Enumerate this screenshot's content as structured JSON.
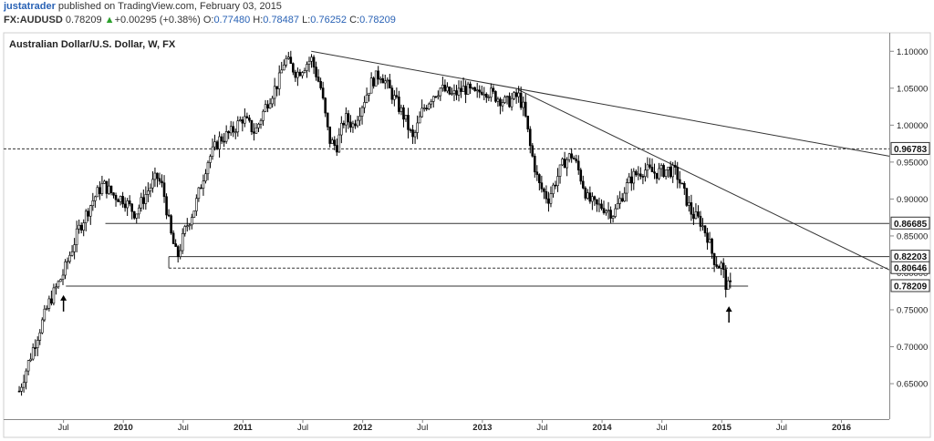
{
  "header": {
    "user": "justatrader",
    "published": " published on TradingView.com, February 03, 2015",
    "symbol": "FX:AUDUSD",
    "last": "0.78209",
    "change_arrow": "▲",
    "change": "+0.00295 (+0.38%)",
    "o_label": "O:",
    "o_val": "0.77480",
    "h_label": "H:",
    "h_val": "0.78487",
    "l_label": "L:",
    "l_val": "0.76252",
    "c_label": "C:",
    "c_val": "0.78209"
  },
  "chart_data": {
    "type": "candlestick",
    "title": "Australian Dollar/U.S. Dollar, W, FX",
    "ylim": [
      0.602,
      1.125
    ],
    "y_ticks": [
      "1.10000",
      "1.05000",
      "1.00000",
      "0.95000",
      "0.90000",
      "0.85000",
      "0.80000",
      "0.75000",
      "0.70000",
      "0.65000"
    ],
    "x_ticks": [
      {
        "label": "Jul",
        "t": 2009.5,
        "bold": false
      },
      {
        "label": "2010",
        "t": 2010.0,
        "bold": true
      },
      {
        "label": "Jul",
        "t": 2010.5,
        "bold": false
      },
      {
        "label": "2011",
        "t": 2011.0,
        "bold": true
      },
      {
        "label": "Jul",
        "t": 2011.5,
        "bold": false
      },
      {
        "label": "2012",
        "t": 2012.0,
        "bold": true
      },
      {
        "label": "Jul",
        "t": 2012.5,
        "bold": false
      },
      {
        "label": "2013",
        "t": 2013.0,
        "bold": true
      },
      {
        "label": "Jul",
        "t": 2013.5,
        "bold": false
      },
      {
        "label": "2014",
        "t": 2014.0,
        "bold": true
      },
      {
        "label": "Jul",
        "t": 2014.5,
        "bold": false
      },
      {
        "label": "2015",
        "t": 2015.0,
        "bold": true
      },
      {
        "label": "Jul",
        "t": 2015.5,
        "bold": false
      },
      {
        "label": "2016",
        "t": 2016.0,
        "bold": true
      }
    ],
    "price_path": [
      [
        2009.13,
        0.64
      ],
      [
        2009.25,
        0.7
      ],
      [
        2009.38,
        0.76
      ],
      [
        2009.5,
        0.8
      ],
      [
        2009.63,
        0.86
      ],
      [
        2009.75,
        0.9
      ],
      [
        2009.83,
        0.92
      ],
      [
        2009.92,
        0.905
      ],
      [
        2010.0,
        0.9
      ],
      [
        2010.1,
        0.88
      ],
      [
        2010.2,
        0.91
      ],
      [
        2010.28,
        0.93
      ],
      [
        2010.33,
        0.915
      ],
      [
        2010.4,
        0.85
      ],
      [
        2010.45,
        0.82
      ],
      [
        2010.52,
        0.86
      ],
      [
        2010.6,
        0.89
      ],
      [
        2010.7,
        0.95
      ],
      [
        2010.8,
        0.98
      ],
      [
        2010.9,
        0.99
      ],
      [
        2011.0,
        1.01
      ],
      [
        2011.1,
        0.99
      ],
      [
        2011.2,
        1.03
      ],
      [
        2011.3,
        1.06
      ],
      [
        2011.35,
        1.09
      ],
      [
        2011.45,
        1.07
      ],
      [
        2011.57,
        1.09
      ],
      [
        2011.65,
        1.05
      ],
      [
        2011.72,
        0.98
      ],
      [
        2011.78,
        0.97
      ],
      [
        2011.85,
        1.01
      ],
      [
        2011.92,
        1.0
      ],
      [
        2012.0,
        1.03
      ],
      [
        2012.08,
        1.06
      ],
      [
        2012.15,
        1.07
      ],
      [
        2012.25,
        1.04
      ],
      [
        2012.35,
        1.01
      ],
      [
        2012.42,
        0.98
      ],
      [
        2012.5,
        1.02
      ],
      [
        2012.58,
        1.04
      ],
      [
        2012.65,
        1.05
      ],
      [
        2012.75,
        1.04
      ],
      [
        2012.85,
        1.05
      ],
      [
        2012.95,
        1.04
      ],
      [
        2013.0,
        1.05
      ],
      [
        2013.1,
        1.04
      ],
      [
        2013.2,
        1.03
      ],
      [
        2013.3,
        1.04
      ],
      [
        2013.35,
        1.02
      ],
      [
        2013.4,
        0.97
      ],
      [
        2013.47,
        0.92
      ],
      [
        2013.55,
        0.9
      ],
      [
        2013.6,
        0.92
      ],
      [
        2013.68,
        0.95
      ],
      [
        2013.75,
        0.96
      ],
      [
        2013.8,
        0.94
      ],
      [
        2013.88,
        0.9
      ],
      [
        2013.95,
        0.89
      ],
      [
        2014.0,
        0.89
      ],
      [
        2014.1,
        0.88
      ],
      [
        2014.18,
        0.91
      ],
      [
        2014.25,
        0.93
      ],
      [
        2014.35,
        0.94
      ],
      [
        2014.45,
        0.935
      ],
      [
        2014.55,
        0.94
      ],
      [
        2014.62,
        0.935
      ],
      [
        2014.68,
        0.91
      ],
      [
        2014.75,
        0.88
      ],
      [
        2014.82,
        0.87
      ],
      [
        2014.88,
        0.85
      ],
      [
        2014.93,
        0.82
      ],
      [
        2014.97,
        0.81
      ],
      [
        2015.0,
        0.81
      ],
      [
        2015.04,
        0.78
      ],
      [
        2015.08,
        0.782
      ]
    ],
    "horizontal_levels": [
      {
        "value": 0.96783,
        "label": "0.96783",
        "dashed": true,
        "t_start": 2009.0
      },
      {
        "value": 0.86685,
        "label": "0.86685",
        "dashed": false,
        "t_start": 2009.85
      },
      {
        "value": 0.82203,
        "label": "0.82203",
        "dashed": false,
        "t_start": 2010.38
      },
      {
        "value": 0.80646,
        "label": "0.80646",
        "dashed": true,
        "t_start": 2010.38
      },
      {
        "value": 0.78209,
        "label": "0.78209",
        "dashed": false,
        "t_start": 2009.52,
        "t_end": 2015.22
      }
    ],
    "trendlines": [
      {
        "t1": 2011.57,
        "v1": 1.1,
        "t2": 2016.4,
        "v2": 0.958
      },
      {
        "t1": 2013.3,
        "v1": 1.048,
        "t2": 2016.4,
        "v2": 0.804
      }
    ],
    "arrows": [
      {
        "t": 2009.5,
        "v": 0.76
      },
      {
        "t": 2015.06,
        "v": 0.745
      }
    ]
  }
}
